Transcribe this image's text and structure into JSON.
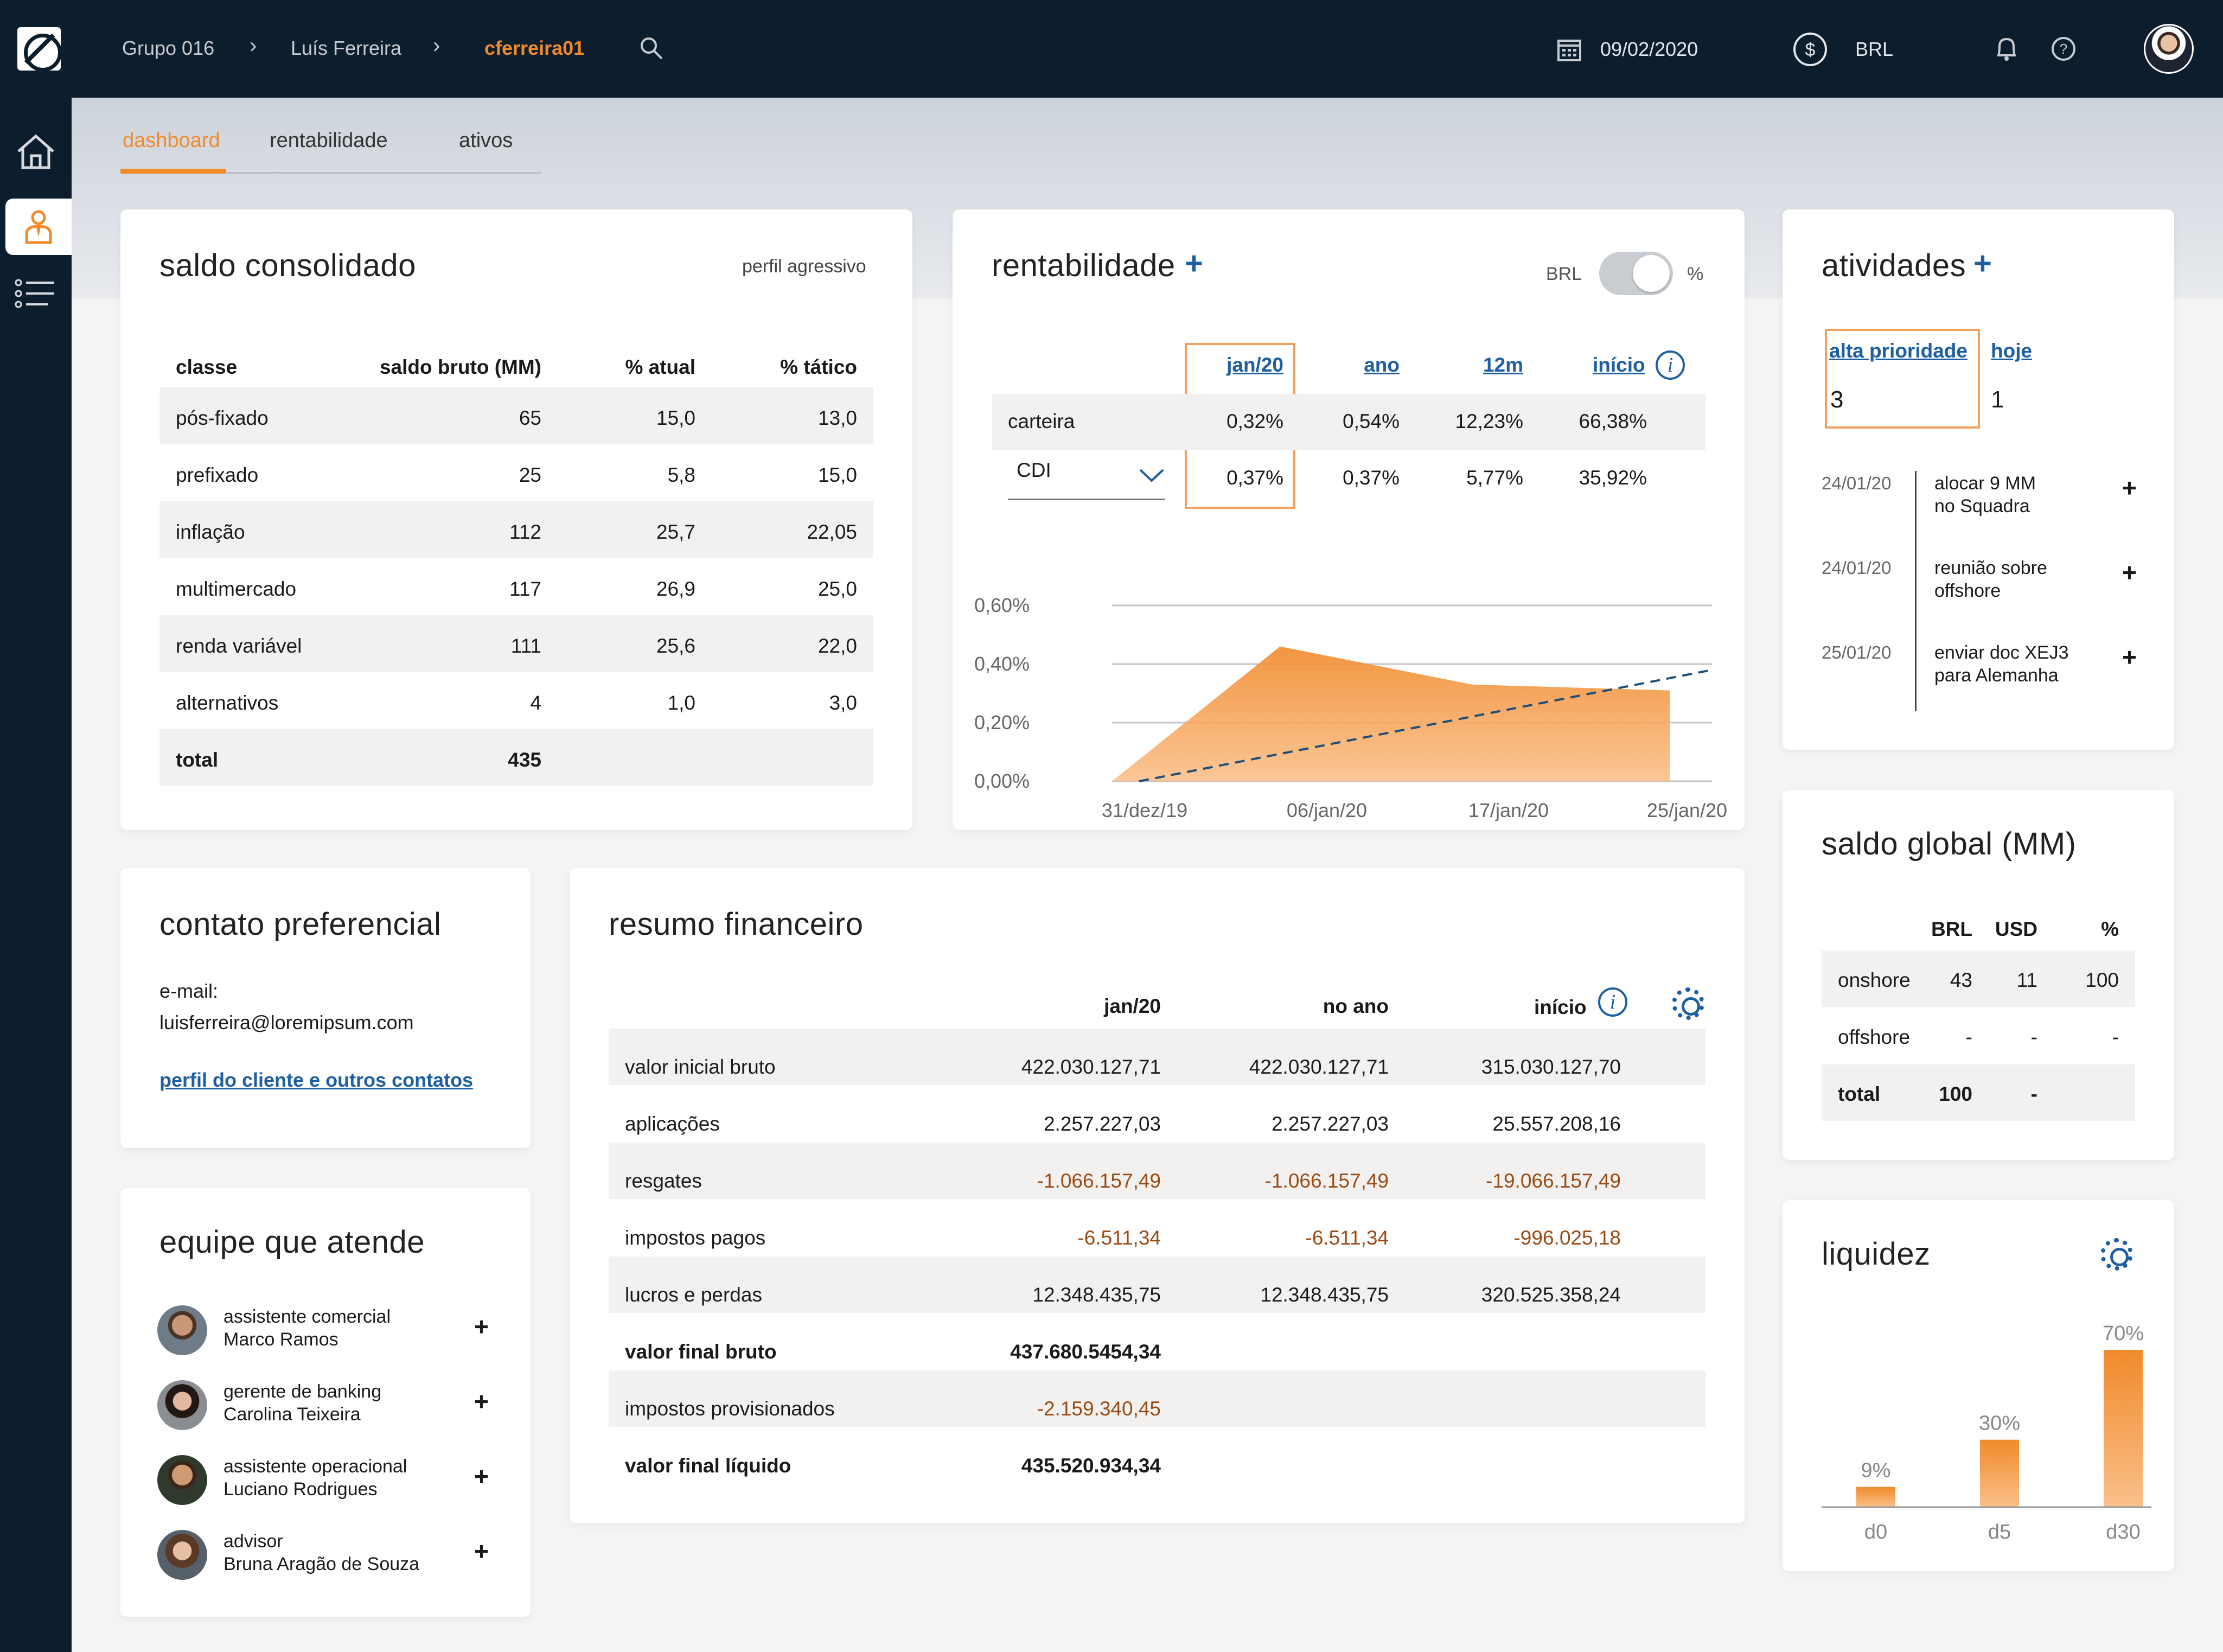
{
  "header": {
    "breadcrumb": [
      "Grupo 016",
      "Luís Ferreira",
      "cferreira01"
    ],
    "date": "09/02/2020",
    "currency": "BRL"
  },
  "tabs": [
    "dashboard",
    "rentabilidade",
    "ativos"
  ],
  "saldo": {
    "title": "saldo consolidado",
    "profile": "perfil agressivo",
    "columns": [
      "classe",
      "saldo bruto (MM)",
      "% atual",
      "% tático"
    ],
    "rows": [
      [
        "pós-fixado",
        "65",
        "15,0",
        "13,0"
      ],
      [
        "prefixado",
        "25",
        "5,8",
        "15,0"
      ],
      [
        "inflação",
        "112",
        "25,7",
        "22,05"
      ],
      [
        "multimercado",
        "117",
        "26,9",
        "25,0"
      ],
      [
        "renda variável",
        "111",
        "25,6",
        "22,0"
      ],
      [
        "alternativos",
        "4",
        "1,0",
        "3,0"
      ]
    ],
    "total_label": "total",
    "total_value": "435"
  },
  "rent": {
    "title": "rentabilidade",
    "plus": "+",
    "toggle_left": "BRL",
    "toggle_right": "%",
    "columns": [
      "jan/20",
      "ano",
      "12m",
      "início"
    ],
    "row1_label": "carteira",
    "row1": [
      "0,32%",
      "0,54%",
      "12,23%",
      "66,38%"
    ],
    "row2_label": "CDI",
    "row2": [
      "0,37%",
      "0,37%",
      "5,77%",
      "35,92%"
    ]
  },
  "chart_data": {
    "type": "area",
    "x": [
      "31/dez/19",
      "06/jan/20",
      "17/jan/20",
      "25/jan/20"
    ],
    "y_ticks": [
      "0,00%",
      "0,20%",
      "0,40%",
      "0,60%"
    ],
    "ylim": [
      0,
      0.6
    ],
    "series": [
      {
        "name": "carteira",
        "type": "area",
        "color": "#f5a05a",
        "points": [
          [
            0,
            0.0
          ],
          [
            0.28,
            0.46
          ],
          [
            0.6,
            0.33
          ],
          [
            0.93,
            0.31
          ]
        ]
      },
      {
        "name": "CDI",
        "type": "line",
        "color": "#1d4f7a",
        "dashed": true,
        "points": [
          [
            0,
            0.0
          ],
          [
            1.0,
            0.38
          ]
        ]
      }
    ]
  },
  "atividades": {
    "title": "atividades",
    "plus": "+",
    "tab1": "alta prioridade",
    "tab2": "hoje",
    "count1": "3",
    "count2": "1",
    "items": [
      {
        "date": "24/01/20",
        "line1": "alocar 9 MM",
        "line2": "no Squadra"
      },
      {
        "date": "24/01/20",
        "line1": "reunião sobre",
        "line2": "offshore"
      },
      {
        "date": "25/01/20",
        "line1": "enviar doc XEJ3",
        "line2": "para Alemanha"
      }
    ]
  },
  "contato": {
    "title": "contato preferencial",
    "email_label": "e-mail:",
    "email": "luisferreira@loremipsum.com",
    "link": "perfil do cliente e outros contatos"
  },
  "equipe": {
    "title": "equipe que atende",
    "members": [
      {
        "role": "assistente comercial",
        "name": "Marco Ramos"
      },
      {
        "role": "gerente de banking",
        "name": "Carolina Teixeira"
      },
      {
        "role": "assistente operacional",
        "name": "Luciano Rodrigues"
      },
      {
        "role": "advisor",
        "name": "Bruna Aragão de Souza"
      }
    ]
  },
  "resumo": {
    "title": "resumo financeiro",
    "columns": [
      "jan/20",
      "no ano",
      "início"
    ],
    "rows": [
      {
        "label": "valor inicial bruto",
        "v": [
          "422.030.127,71",
          "422.030.127,71",
          "315.030.127,70"
        ],
        "neg": false,
        "bold": false
      },
      {
        "label": "aplicações",
        "v": [
          "2.257.227,03",
          "2.257.227,03",
          "25.557.208,16"
        ],
        "neg": false,
        "bold": false
      },
      {
        "label": "resgates",
        "v": [
          "-1.066.157,49",
          "-1.066.157,49",
          "-19.066.157,49"
        ],
        "neg": true,
        "bold": false
      },
      {
        "label": "impostos pagos",
        "v": [
          "-6.511,34",
          "-6.511,34",
          "-996.025,18"
        ],
        "neg": true,
        "bold": false
      },
      {
        "label": "lucros e perdas",
        "v": [
          "12.348.435,75",
          "12.348.435,75",
          "320.525.358,24"
        ],
        "neg": false,
        "bold": false
      },
      {
        "label": "valor final bruto",
        "v": [
          "437.680.5454,34",
          "",
          ""
        ],
        "neg": false,
        "bold": true
      },
      {
        "label": "impostos provisionados",
        "v": [
          "-2.159.340,45",
          "",
          ""
        ],
        "neg": true,
        "bold": false
      },
      {
        "label": "valor final líquido",
        "v": [
          "435.520.934,34",
          "",
          ""
        ],
        "neg": false,
        "bold": true
      }
    ]
  },
  "global": {
    "title": "saldo global (MM)",
    "columns": [
      "BRL",
      "USD",
      "%"
    ],
    "rows": [
      [
        "onshore",
        "43",
        "11",
        "100"
      ],
      [
        "offshore",
        "-",
        "-",
        "-"
      ],
      [
        "total",
        "100",
        "-",
        ""
      ]
    ]
  },
  "liquidez": {
    "title": "liquidez",
    "categories": [
      "d0",
      "d5",
      "d30"
    ],
    "values": [
      9,
      30,
      70
    ],
    "labels": [
      "9%",
      "30%",
      "70%"
    ]
  },
  "icons": {
    "search": "search-icon",
    "calendar": "calendar-icon",
    "bell": "bell-icon",
    "help": "help-icon",
    "home": "home-icon",
    "user": "user-icon",
    "list": "list-icon",
    "gear": "gear-icon"
  }
}
